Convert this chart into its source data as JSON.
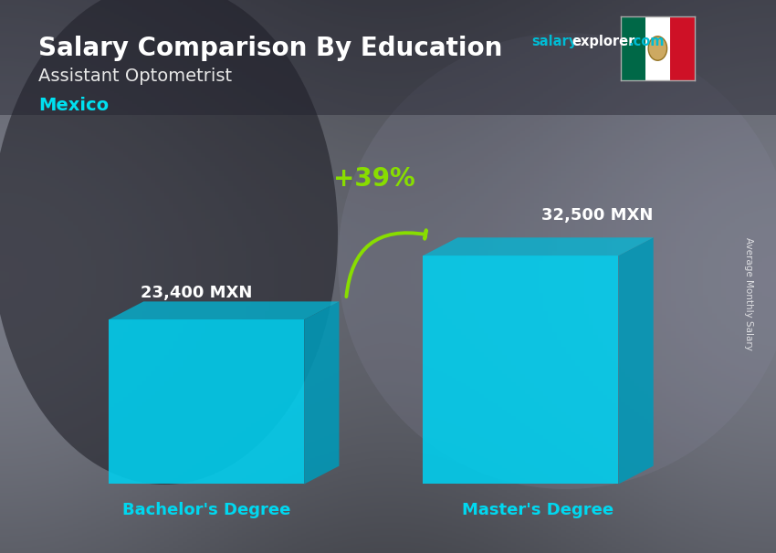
{
  "title": "Salary Comparison By Education",
  "subtitle": "Assistant Optometrist",
  "country": "Mexico",
  "ylabel": "Average Monthly Salary",
  "categories": [
    "Bachelor's Degree",
    "Master's Degree"
  ],
  "values": [
    23400,
    32500
  ],
  "bar_labels": [
    "23,400 MXN",
    "32,500 MXN"
  ],
  "pct_change": "+39%",
  "bar_face_color": "#00d0f0",
  "bar_side_color": "#0099b8",
  "bar_top_color": "#00b8d8",
  "bg_dark": "#4a4a58",
  "bg_mid": "#606070",
  "bg_light": "#787888",
  "title_color": "#ffffff",
  "subtitle_color": "#e8e8e8",
  "country_color": "#00e0f0",
  "label_color": "#ffffff",
  "x_label_color": "#00d8f0",
  "arrow_color": "#88dd00",
  "pct_color": "#88dd00",
  "watermark_salary": "#00bcd4",
  "watermark_explorer": "#ffffff",
  "watermark_com": "#00bcd4",
  "flag_green": "#006847",
  "flag_white": "#ffffff",
  "flag_red": "#ce1126",
  "ylim_max": 40000
}
